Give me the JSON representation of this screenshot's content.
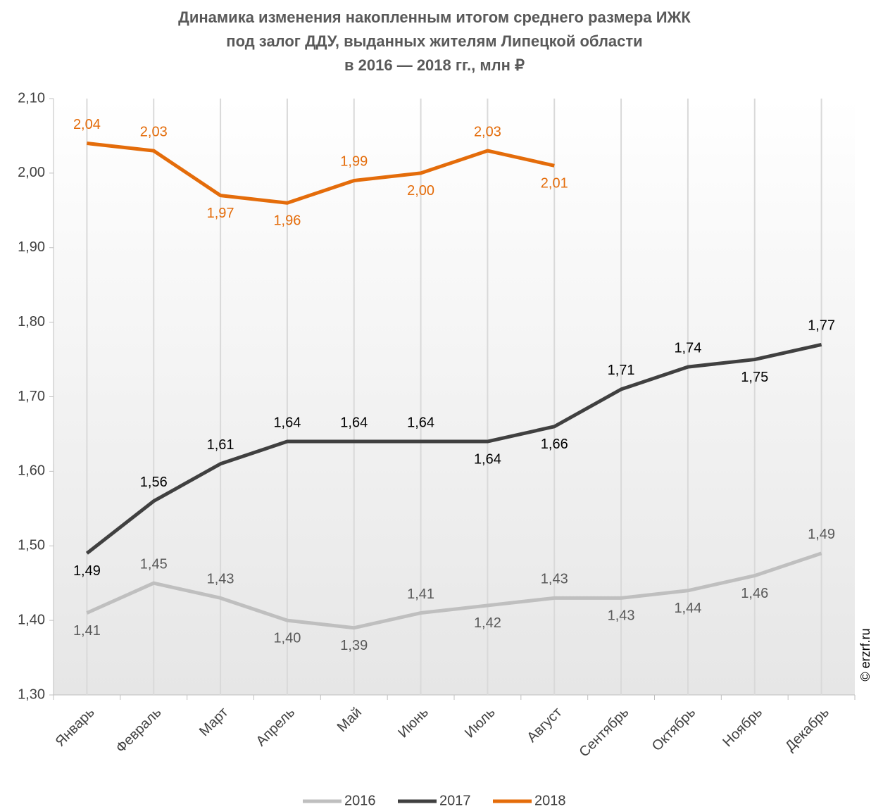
{
  "chart_data": {
    "type": "line",
    "title": [
      "Динамика изменения накопленным  итогом среднего размера ИЖК",
      "под залог ДДУ, выданных жителям Липецкой области",
      "в 2016 — 2018 гг., млн ₽"
    ],
    "categories": [
      "Январь",
      "Февраль",
      "Март",
      "Апрель",
      "Май",
      "Июнь",
      "Июль",
      "Август",
      "Сентябрь",
      "Октябрь",
      "Ноябрь",
      "Декабрь"
    ],
    "series": [
      {
        "name": "2016",
        "color": "#bfbfbf",
        "label_color": "#595959",
        "values": [
          1.41,
          1.45,
          1.43,
          1.4,
          1.39,
          1.41,
          1.42,
          1.43,
          1.43,
          1.44,
          1.46,
          1.49
        ],
        "value_labels": [
          "1,41",
          "1,45",
          "1,43",
          "1,40",
          "1,39",
          "1,41",
          "1,42",
          "1,43",
          "1,43",
          "1,44",
          "1,46",
          "1,49"
        ]
      },
      {
        "name": "2017",
        "color": "#404040",
        "label_color": "#000000",
        "values": [
          1.49,
          1.56,
          1.61,
          1.64,
          1.64,
          1.64,
          1.64,
          1.66,
          1.71,
          1.74,
          1.75,
          1.77
        ],
        "value_labels": [
          "1,49",
          "1,56",
          "1,61",
          "1,64",
          "1,64",
          "1,64",
          "1,64",
          "1,66",
          "1,71",
          "1,74",
          "1,75",
          "1,77"
        ]
      },
      {
        "name": "2018",
        "color": "#e46c0a",
        "label_color": "#e46c0a",
        "values": [
          2.04,
          2.03,
          1.97,
          1.96,
          1.99,
          2.0,
          2.03,
          2.01,
          null,
          null,
          null,
          null
        ],
        "value_labels": [
          "2,04",
          "2,03",
          "1,97",
          "1,96",
          "1,99",
          "2,00",
          "2,03",
          "2,01",
          null,
          null,
          null,
          null
        ]
      }
    ],
    "ylim": [
      1.3,
      2.1
    ],
    "yticks": [
      {
        "value": 1.3,
        "label": "1,30"
      },
      {
        "value": 1.4,
        "label": "1,40"
      },
      {
        "value": 1.5,
        "label": "1,50"
      },
      {
        "value": 1.6,
        "label": "1,60"
      },
      {
        "value": 1.7,
        "label": "1,70"
      },
      {
        "value": 1.8,
        "label": "1,80"
      },
      {
        "value": 1.9,
        "label": "1,90"
      },
      {
        "value": 2.0,
        "label": "2,00"
      },
      {
        "value": 2.1,
        "label": "2,10"
      }
    ],
    "grid": true,
    "legend": "bottom",
    "annotation": "© erzrf.ru"
  }
}
